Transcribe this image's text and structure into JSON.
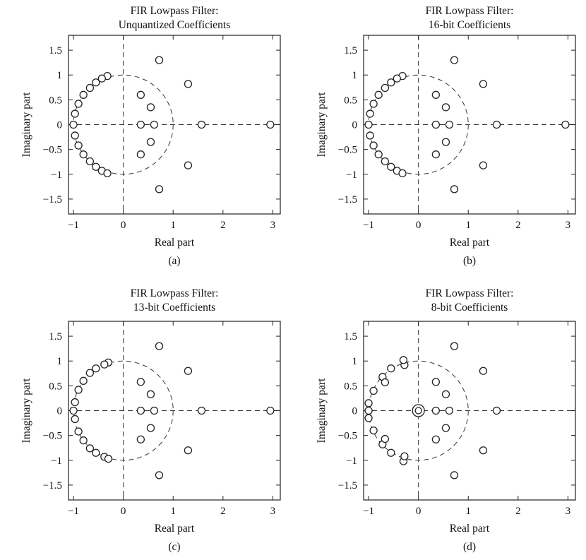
{
  "chart_data": [
    {
      "type": "scatter",
      "title_line1": "FIR Lowpass Filter:",
      "title_line2": "Unquantized Coefficients",
      "xlabel": "Real part",
      "ylabel": "Imaginary part",
      "caption": "(a)",
      "xlim": [
        -1.1,
        3.15
      ],
      "ylim": [
        -1.8,
        1.8
      ],
      "xticks": [
        -1,
        0,
        1,
        2,
        3
      ],
      "xtick_labels": [
        "−1",
        "0",
        "1",
        "2",
        "3"
      ],
      "yticks": [
        1.5,
        1,
        0.5,
        0,
        -0.5,
        -1,
        -1.5
      ],
      "ytick_labels": [
        "1.5",
        "1",
        "0.5",
        "0",
        "−0.5",
        "−1",
        "−1.5"
      ],
      "unit_circle": true,
      "points": [
        [
          -0.32,
          0.98
        ],
        [
          -0.43,
          0.93
        ],
        [
          -0.55,
          0.85
        ],
        [
          -0.67,
          0.74
        ],
        [
          -0.8,
          0.6
        ],
        [
          -0.9,
          0.42
        ],
        [
          -0.97,
          0.22
        ],
        [
          -1.0,
          0.0
        ],
        [
          -0.97,
          -0.22
        ],
        [
          -0.9,
          -0.42
        ],
        [
          -0.8,
          -0.6
        ],
        [
          -0.67,
          -0.74
        ],
        [
          -0.55,
          -0.85
        ],
        [
          -0.43,
          -0.93
        ],
        [
          -0.32,
          -0.98
        ],
        [
          0.72,
          1.3
        ],
        [
          0.72,
          -1.3
        ],
        [
          0.35,
          0.6
        ],
        [
          0.35,
          -0.6
        ],
        [
          0.55,
          0.35
        ],
        [
          0.55,
          -0.35
        ],
        [
          0.35,
          0.0
        ],
        [
          0.62,
          0.0
        ],
        [
          1.3,
          0.82
        ],
        [
          1.3,
          -0.82
        ],
        [
          1.57,
          0.0
        ],
        [
          2.95,
          0.0
        ]
      ]
    },
    {
      "type": "scatter",
      "title_line1": "FIR Lowpass Filter:",
      "title_line2": "16-bit Coefficients",
      "xlabel": "Real part",
      "ylabel": "Imaginary part",
      "caption": "(b)",
      "xlim": [
        -1.1,
        3.15
      ],
      "ylim": [
        -1.8,
        1.8
      ],
      "xticks": [
        -1,
        0,
        1,
        2,
        3
      ],
      "xtick_labels": [
        "−1",
        "0",
        "1",
        "2",
        "3"
      ],
      "yticks": [
        1.5,
        1,
        0.5,
        0,
        -0.5,
        -1,
        -1.5
      ],
      "ytick_labels": [
        "1.5",
        "1",
        "0.5",
        "0",
        "−0.5",
        "−1",
        "−1.5"
      ],
      "unit_circle": true,
      "points": [
        [
          -0.32,
          0.98
        ],
        [
          -0.43,
          0.93
        ],
        [
          -0.55,
          0.85
        ],
        [
          -0.67,
          0.74
        ],
        [
          -0.8,
          0.6
        ],
        [
          -0.9,
          0.42
        ],
        [
          -0.97,
          0.22
        ],
        [
          -1.0,
          0.0
        ],
        [
          -0.97,
          -0.22
        ],
        [
          -0.9,
          -0.42
        ],
        [
          -0.8,
          -0.6
        ],
        [
          -0.67,
          -0.74
        ],
        [
          -0.55,
          -0.85
        ],
        [
          -0.43,
          -0.93
        ],
        [
          -0.32,
          -0.98
        ],
        [
          0.72,
          1.3
        ],
        [
          0.72,
          -1.3
        ],
        [
          0.35,
          0.6
        ],
        [
          0.35,
          -0.6
        ],
        [
          0.55,
          0.35
        ],
        [
          0.55,
          -0.35
        ],
        [
          0.35,
          0.0
        ],
        [
          0.62,
          0.0
        ],
        [
          1.3,
          0.82
        ],
        [
          1.3,
          -0.82
        ],
        [
          1.57,
          0.0
        ],
        [
          2.95,
          0.0
        ]
      ]
    },
    {
      "type": "scatter",
      "title_line1": "FIR Lowpass Filter:",
      "title_line2": "13-bit Coefficients",
      "xlabel": "Real part",
      "ylabel": "Imaginary part",
      "caption": "(c)",
      "xlim": [
        -1.1,
        3.15
      ],
      "ylim": [
        -1.8,
        1.8
      ],
      "xticks": [
        -1,
        0,
        1,
        2,
        3
      ],
      "xtick_labels": [
        "−1",
        "0",
        "1",
        "2",
        "3"
      ],
      "yticks": [
        1.5,
        1,
        0.5,
        0,
        -0.5,
        -1,
        -1.5
      ],
      "ytick_labels": [
        "1.5",
        "1",
        "0.5",
        "0",
        "−0.5",
        "−1",
        "−1.5"
      ],
      "unit_circle": true,
      "points": [
        [
          -0.3,
          0.97
        ],
        [
          -0.38,
          0.93
        ],
        [
          -0.55,
          0.85
        ],
        [
          -0.67,
          0.76
        ],
        [
          -0.8,
          0.6
        ],
        [
          -0.9,
          0.42
        ],
        [
          -0.97,
          0.17
        ],
        [
          -1.0,
          0.0
        ],
        [
          -0.97,
          -0.17
        ],
        [
          -0.9,
          -0.42
        ],
        [
          -0.8,
          -0.6
        ],
        [
          -0.67,
          -0.76
        ],
        [
          -0.55,
          -0.85
        ],
        [
          -0.38,
          -0.93
        ],
        [
          -0.3,
          -0.97
        ],
        [
          0.72,
          1.3
        ],
        [
          0.72,
          -1.3
        ],
        [
          0.35,
          0.58
        ],
        [
          0.35,
          -0.58
        ],
        [
          0.55,
          0.33
        ],
        [
          0.55,
          -0.35
        ],
        [
          0.35,
          0.0
        ],
        [
          0.62,
          0.0
        ],
        [
          1.3,
          0.8
        ],
        [
          1.3,
          -0.8
        ],
        [
          1.57,
          0.0
        ],
        [
          2.95,
          0.0
        ]
      ]
    },
    {
      "type": "scatter",
      "title_line1": "FIR Lowpass Filter:",
      "title_line2": "8-bit Coefficients",
      "xlabel": "Real part",
      "ylabel": "Imaginary part",
      "caption": "(d)",
      "xlim": [
        -1.1,
        3.15
      ],
      "ylim": [
        -1.8,
        1.8
      ],
      "xticks": [
        -1,
        0,
        1,
        2,
        3
      ],
      "xtick_labels": [
        "−1",
        "0",
        "1",
        "2",
        "3"
      ],
      "yticks": [
        1.5,
        1,
        0.5,
        0,
        -0.5,
        -1,
        -1.5
      ],
      "ytick_labels": [
        "1.5",
        "1",
        "0.5",
        "0",
        "−0.5",
        "−1",
        "−1.5"
      ],
      "unit_circle": true,
      "double_zero_at_origin": true,
      "points": [
        [
          -0.28,
          0.92
        ],
        [
          -0.3,
          1.02
        ],
        [
          -0.72,
          0.68
        ],
        [
          -0.67,
          0.57
        ],
        [
          -0.55,
          0.85
        ],
        [
          -0.9,
          0.4
        ],
        [
          -1.0,
          0.15
        ],
        [
          -1.0,
          0.0
        ],
        [
          -1.0,
          -0.15
        ],
        [
          -0.9,
          -0.4
        ],
        [
          -0.72,
          -0.68
        ],
        [
          -0.67,
          -0.57
        ],
        [
          -0.55,
          -0.85
        ],
        [
          -0.3,
          -1.02
        ],
        [
          -0.28,
          -0.92
        ],
        [
          0.72,
          1.3
        ],
        [
          0.72,
          -1.3
        ],
        [
          0.35,
          0.58
        ],
        [
          0.35,
          -0.58
        ],
        [
          0.55,
          0.33
        ],
        [
          0.55,
          -0.35
        ],
        [
          0.35,
          0.0
        ],
        [
          0.62,
          0.0
        ],
        [
          1.3,
          0.8
        ],
        [
          1.3,
          -0.8
        ],
        [
          1.57,
          0.0
        ]
      ]
    }
  ]
}
